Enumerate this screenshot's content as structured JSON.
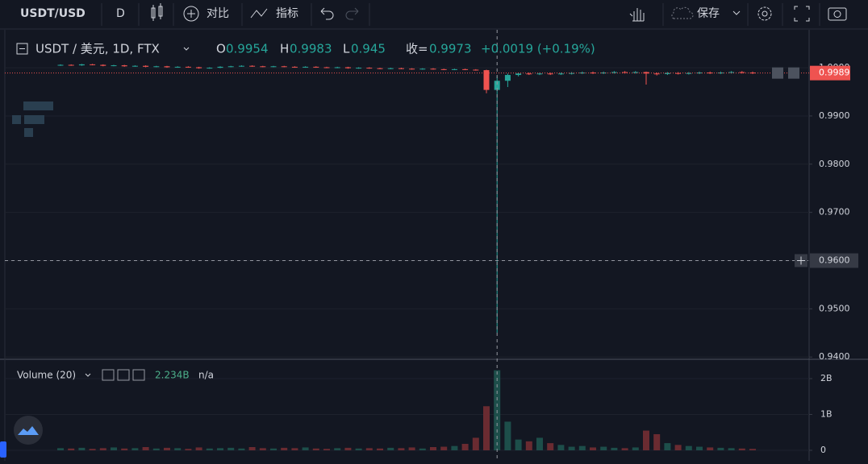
{
  "toolbar": {
    "symbol": "USDT/USD",
    "interval": "D",
    "compare": "对比",
    "indicators": "指标",
    "save": "保存"
  },
  "chart_data": {
    "type": "candlestick",
    "legend": {
      "symbol": "USDT / 美元, 1D, FTX",
      "o": "O",
      "h": "H",
      "l": "L",
      "c": "收=",
      "change": "+0.0019 (+0.19%)",
      "index": 41
    },
    "up_color": "#26a69a",
    "down_color": "#ef5350",
    "ylim": [
      0.9397,
      1.0077
    ],
    "yticks": [
      {
        "value": 0.94,
        "label": "0.9400"
      },
      {
        "value": 0.95,
        "label": "0.9500"
      },
      {
        "value": 0.96,
        "label": "0.9600"
      },
      {
        "value": 0.97,
        "label": "0.9700"
      },
      {
        "value": 0.98,
        "label": "0.9800"
      },
      {
        "value": 0.99,
        "label": "0.9900"
      },
      {
        "value": 1.0,
        "label": "1.0000"
      }
    ],
    "grid": true,
    "crosshair": {
      "value": 0.96,
      "label": "0.9600"
    },
    "open": [
      1.0005,
      1.0006,
      1.0005,
      1.0007,
      1.0006,
      1.0004,
      1.0005,
      1.0003,
      1.0004,
      1.0002,
      1.0003,
      1.0001,
      1.0002,
      1.0001,
      0.9999,
      1.0,
      1.0002,
      1.0003,
      1.0004,
      1.0003,
      1.0002,
      1.0003,
      1.0002,
      1.0001,
      1.0002,
      1.0001,
      1.0,
      1.0001,
      0.9999,
      1.0,
      0.9999,
      0.9998,
      0.9999,
      0.9998,
      0.9997,
      0.9998,
      0.9997,
      0.9996,
      0.9997,
      0.9996,
      0.9995,
      0.9954,
      0.9973,
      0.9985,
      0.9988,
      0.9987,
      0.9988,
      0.9987,
      0.9988,
      0.9989,
      0.999,
      0.9989,
      0.999,
      0.9991,
      0.999,
      0.9991,
      0.9988,
      0.9987,
      0.9989,
      0.9988,
      0.9989,
      0.999,
      0.9989,
      0.999,
      0.9991,
      0.999
    ],
    "high": [
      1.0007,
      1.0007,
      1.0008,
      1.0008,
      1.0007,
      1.0006,
      1.0006,
      1.0005,
      1.0005,
      1.0004,
      1.0004,
      1.0003,
      1.0003,
      1.0002,
      1.0001,
      1.0003,
      1.0004,
      1.0005,
      1.0005,
      1.0004,
      1.0004,
      1.0004,
      1.0003,
      1.0003,
      1.0003,
      1.0002,
      1.0002,
      1.0002,
      1.0001,
      1.0001,
      1.0,
      1.0,
      1.0,
      0.9999,
      0.9999,
      0.9999,
      0.9998,
      0.9998,
      0.9998,
      0.9997,
      0.9996,
      0.9983,
      0.9988,
      0.999,
      0.999,
      0.999,
      0.999,
      0.999,
      0.9991,
      0.9992,
      0.9992,
      0.9992,
      0.9993,
      0.9993,
      0.9993,
      0.9992,
      0.999,
      0.9991,
      0.9991,
      0.9991,
      0.9992,
      0.9992,
      0.9992,
      0.9993,
      0.9993,
      0.9992
    ],
    "low": [
      1.0004,
      1.0004,
      1.0004,
      1.0005,
      1.0003,
      1.0003,
      1.0002,
      1.0002,
      1.0001,
      1.0001,
      1.0,
      1.0,
      1.0,
      0.9998,
      0.9998,
      0.9999,
      1.0001,
      1.0002,
      1.0002,
      1.0001,
      1.0001,
      1.0001,
      1.0,
      1.0,
      1.0,
      0.9999,
      0.9999,
      0.9998,
      0.9998,
      0.9998,
      0.9997,
      0.9997,
      0.9997,
      0.9996,
      0.9996,
      0.9996,
      0.9995,
      0.9995,
      0.9995,
      0.9994,
      0.9947,
      0.945,
      0.996,
      0.9982,
      0.9985,
      0.9985,
      0.9985,
      0.9985,
      0.9986,
      0.9987,
      0.9987,
      0.9987,
      0.9988,
      0.9988,
      0.9988,
      0.9965,
      0.9984,
      0.9985,
      0.9986,
      0.9986,
      0.9987,
      0.9987,
      0.9987,
      0.9988,
      0.9988,
      0.9987
    ],
    "close": [
      1.0006,
      1.0005,
      1.0007,
      1.0006,
      1.0004,
      1.0005,
      1.0003,
      1.0004,
      1.0002,
      1.0003,
      1.0001,
      1.0002,
      1.0001,
      0.9999,
      1.0,
      1.0002,
      1.0003,
      1.0004,
      1.0003,
      1.0002,
      1.0003,
      1.0002,
      1.0001,
      1.0002,
      1.0001,
      1.0,
      1.0001,
      0.9999,
      1.0,
      0.9999,
      0.9998,
      0.9999,
      0.9998,
      0.9997,
      0.9998,
      0.9997,
      0.9996,
      0.9997,
      0.9996,
      0.9995,
      0.9954,
      0.9973,
      0.9985,
      0.9988,
      0.9987,
      0.9988,
      0.9987,
      0.9988,
      0.9989,
      0.999,
      0.9989,
      0.999,
      0.9991,
      0.999,
      0.9991,
      0.9988,
      0.9987,
      0.9989,
      0.9988,
      0.9989,
      0.999,
      0.9989,
      0.999,
      0.9991,
      0.999,
      0.9989
    ],
    "volume": {
      "name": "Volume (20)",
      "readout": "2.234B",
      "na": "n/a",
      "ylim": [
        0,
        2.45
      ],
      "yticks": [
        0,
        {
          "value": 1,
          "label": "1B"
        },
        {
          "value": 2,
          "label": "2B"
        }
      ],
      "up_color": "#1d4e4a",
      "down_color": "#6a2b31",
      "values": [
        0.06,
        0.05,
        0.07,
        0.04,
        0.06,
        0.08,
        0.05,
        0.06,
        0.09,
        0.05,
        0.07,
        0.06,
        0.04,
        0.08,
        0.05,
        0.06,
        0.07,
        0.05,
        0.09,
        0.06,
        0.05,
        0.07,
        0.06,
        0.08,
        0.05,
        0.04,
        0.06,
        0.07,
        0.05,
        0.06,
        0.05,
        0.07,
        0.06,
        0.08,
        0.05,
        0.09,
        0.1,
        0.12,
        0.18,
        0.35,
        1.23,
        2.234,
        0.8,
        0.3,
        0.25,
        0.35,
        0.2,
        0.15,
        0.1,
        0.12,
        0.08,
        0.1,
        0.07,
        0.06,
        0.08,
        0.55,
        0.45,
        0.2,
        0.15,
        0.12,
        0.1,
        0.08,
        0.07,
        0.06,
        0.05,
        0.04
      ]
    }
  }
}
